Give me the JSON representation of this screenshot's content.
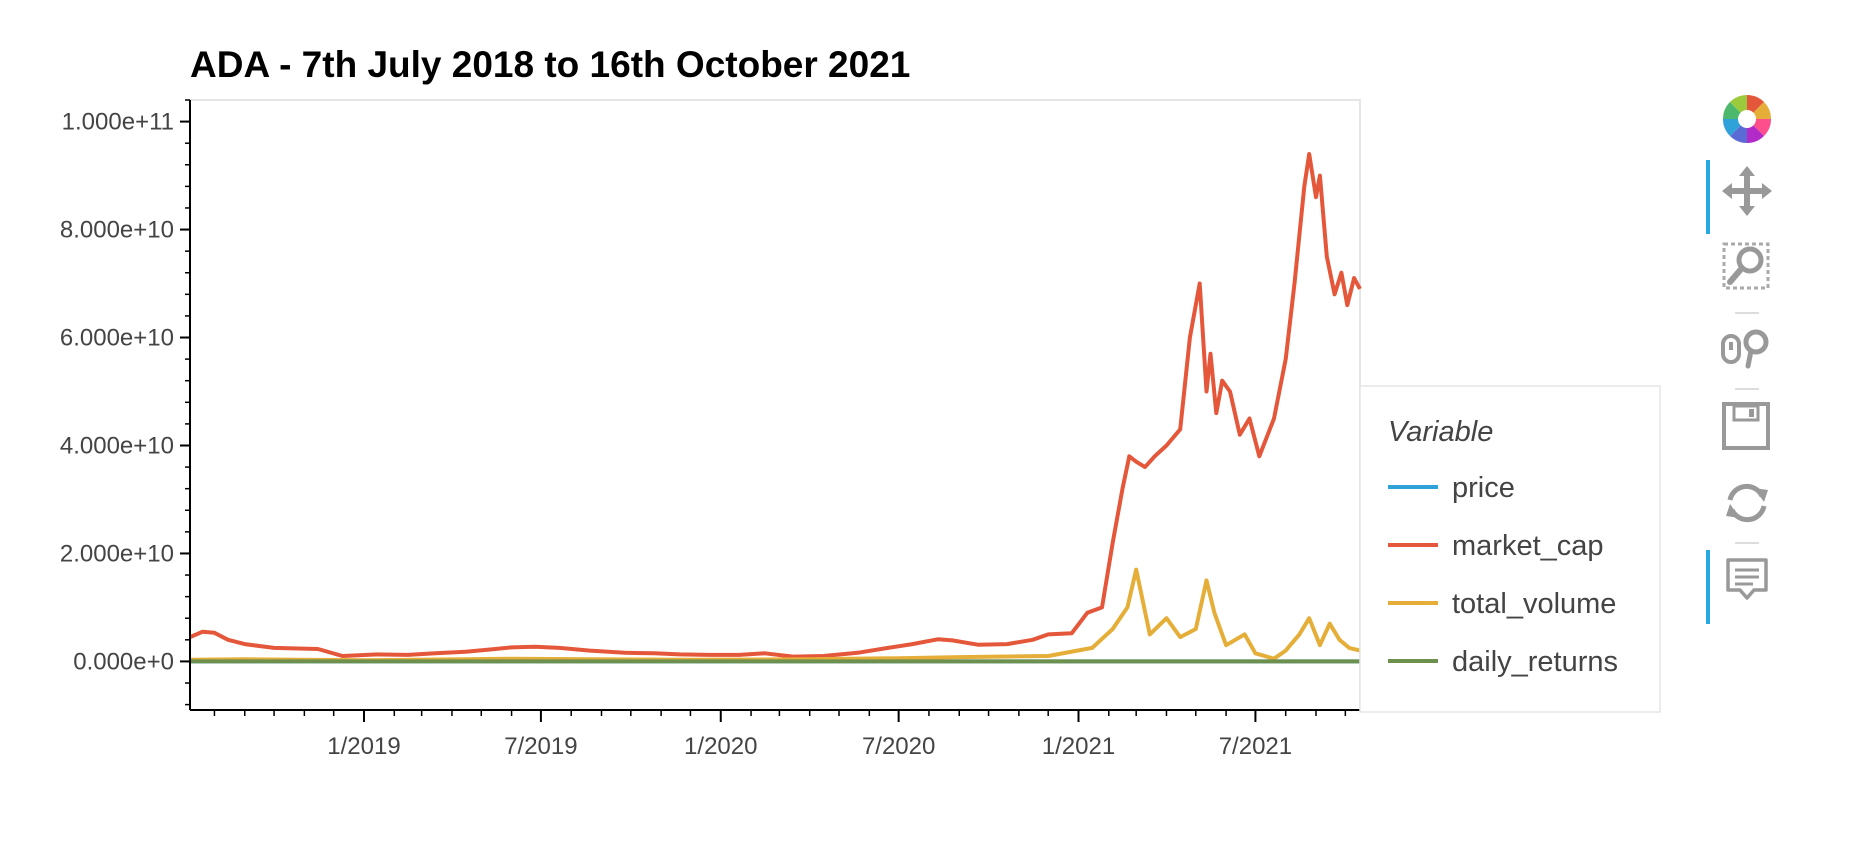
{
  "chart_data": {
    "type": "line",
    "title": "ADA - 7th July 2018 to 16th October 2021",
    "xlabel": "",
    "ylabel": "",
    "x_start": "2018-07-07",
    "x_end": "2021-10-16",
    "xlim": [
      "2018-07-07",
      "2021-10-16"
    ],
    "ylim": [
      -9000000000,
      104000000000
    ],
    "yticks": [
      0,
      20000000000,
      40000000000,
      60000000000,
      80000000000,
      100000000000
    ],
    "ytick_labels": [
      "0.000e+0",
      "2.000e+10",
      "4.000e+10",
      "6.000e+10",
      "8.000e+10",
      "1.000e+11"
    ],
    "xticks": [
      "2019-01-01",
      "2019-07-01",
      "2020-01-01",
      "2020-07-01",
      "2021-01-01",
      "2021-07-01"
    ],
    "xtick_labels": [
      "1/2019",
      "7/2019",
      "1/2020",
      "7/2020",
      "1/2021",
      "7/2021"
    ],
    "legend_title": "Variable",
    "legend_position": "right",
    "grid": false,
    "series": [
      {
        "name": "price",
        "color": "#30a2da",
        "x": [
          "2018-07-07",
          "2021-10-16"
        ],
        "values": [
          0.14,
          2.2
        ]
      },
      {
        "name": "market_cap",
        "color": "#e5573a",
        "x": [
          "2018-07-07",
          "2018-07-20",
          "2018-08-01",
          "2018-08-15",
          "2018-09-01",
          "2018-10-01",
          "2018-11-15",
          "2018-12-10",
          "2019-01-15",
          "2019-02-15",
          "2019-03-15",
          "2019-04-15",
          "2019-05-10",
          "2019-06-01",
          "2019-06-25",
          "2019-07-20",
          "2019-08-20",
          "2019-09-25",
          "2019-10-25",
          "2019-11-20",
          "2019-12-20",
          "2020-01-20",
          "2020-02-15",
          "2020-03-15",
          "2020-04-15",
          "2020-05-20",
          "2020-06-20",
          "2020-07-15",
          "2020-08-10",
          "2020-08-25",
          "2020-09-20",
          "2020-10-20",
          "2020-11-15",
          "2020-12-01",
          "2020-12-25",
          "2021-01-10",
          "2021-01-25",
          "2021-02-05",
          "2021-02-15",
          "2021-02-22",
          "2021-03-01",
          "2021-03-10",
          "2021-03-20",
          "2021-04-01",
          "2021-04-15",
          "2021-04-25",
          "2021-05-05",
          "2021-05-12",
          "2021-05-16",
          "2021-05-22",
          "2021-05-28",
          "2021-06-05",
          "2021-06-15",
          "2021-06-25",
          "2021-07-05",
          "2021-07-20",
          "2021-08-01",
          "2021-08-10",
          "2021-08-20",
          "2021-08-25",
          "2021-09-01",
          "2021-09-05",
          "2021-09-12",
          "2021-09-20",
          "2021-09-27",
          "2021-10-03",
          "2021-10-10",
          "2021-10-16"
        ],
        "values": [
          4500000000,
          5500000000,
          5300000000,
          4000000000,
          3200000000,
          2500000000,
          2300000000,
          1000000000,
          1300000000,
          1200000000,
          1500000000,
          1800000000,
          2200000000,
          2600000000,
          2700000000,
          2500000000,
          2000000000,
          1600000000,
          1500000000,
          1300000000,
          1200000000,
          1200000000,
          1500000000,
          900000000,
          1000000000,
          1600000000,
          2500000000,
          3200000000,
          4100000000,
          3900000000,
          3100000000,
          3200000000,
          4000000000,
          5000000000,
          5200000000,
          9000000000,
          10000000000,
          22000000000,
          32000000000,
          38000000000,
          37000000000,
          36000000000,
          38000000000,
          40000000000,
          43000000000,
          60000000000,
          70000000000,
          50000000000,
          57000000000,
          46000000000,
          52000000000,
          50000000000,
          42000000000,
          45000000000,
          38000000000,
          45000000000,
          56000000000,
          70000000000,
          88000000000,
          94000000000,
          86000000000,
          90000000000,
          75000000000,
          68000000000,
          72000000000,
          66000000000,
          71000000000,
          69000000000
        ]
      },
      {
        "name": "total_volume",
        "color": "#e5ae38",
        "x": [
          "2018-07-07",
          "2018-09-01",
          "2019-01-01",
          "2019-06-01",
          "2019-12-01",
          "2020-04-01",
          "2020-07-01",
          "2020-09-01",
          "2020-12-01",
          "2021-01-15",
          "2021-02-05",
          "2021-02-20",
          "2021-03-01",
          "2021-03-15",
          "2021-04-01",
          "2021-04-15",
          "2021-05-01",
          "2021-05-12",
          "2021-05-20",
          "2021-06-01",
          "2021-06-20",
          "2021-07-01",
          "2021-07-20",
          "2021-08-01",
          "2021-08-15",
          "2021-08-25",
          "2021-09-05",
          "2021-09-15",
          "2021-09-25",
          "2021-10-05",
          "2021-10-16"
        ],
        "values": [
          300000000,
          400000000,
          200000000,
          500000000,
          300000000,
          400000000,
          600000000,
          800000000,
          1000000000,
          2500000000,
          6000000000,
          10000000000,
          17000000000,
          5000000000,
          8000000000,
          4500000000,
          6000000000,
          15000000000,
          9000000000,
          3000000000,
          5000000000,
          1500000000,
          500000000,
          2000000000,
          5000000000,
          8000000000,
          3000000000,
          7000000000,
          4000000000,
          2500000000,
          2000000000
        ]
      },
      {
        "name": "daily_returns",
        "color": "#6d904f",
        "x": [
          "2018-07-07",
          "2021-10-16"
        ],
        "values": [
          0,
          0
        ]
      }
    ]
  },
  "toolbar": {
    "items": [
      {
        "name": "bokeh-logo-icon",
        "label": "Bokeh"
      },
      {
        "name": "pan-icon",
        "label": "Pan"
      },
      {
        "name": "box-zoom-icon",
        "label": "Box Zoom"
      },
      {
        "name": "wheel-zoom-icon",
        "label": "Wheel Zoom"
      },
      {
        "name": "save-icon",
        "label": "Save"
      },
      {
        "name": "reset-icon",
        "label": "Reset"
      },
      {
        "name": "hover-icon",
        "label": "Hover"
      }
    ],
    "active_color": "#26aae1"
  }
}
